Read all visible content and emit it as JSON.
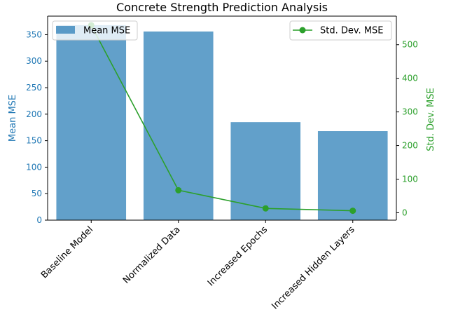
{
  "chart_data": {
    "type": "bar",
    "title": "Concrete Strength Prediction Analysis",
    "categories": [
      "Baseline Model",
      "Normalized Data",
      "Increased Epochs",
      "Increased Hidden Layers"
    ],
    "series": [
      {
        "name": "Mean MSE",
        "type": "bar",
        "axis": "left",
        "color": "#1f77b4",
        "values": [
          368,
          356,
          185,
          168
        ]
      },
      {
        "name": "Std. Dev. MSE",
        "type": "line",
        "axis": "right",
        "color": "#2ca02c",
        "values": [
          558,
          67,
          13,
          6
        ]
      }
    ],
    "ylabel_left": "Mean MSE",
    "ylabel_right": "Std. Dev. MSE",
    "ylim_left": [
      0,
      385
    ],
    "ylim_right": [
      -22,
      585
    ],
    "yticks_left": [
      0,
      50,
      100,
      150,
      200,
      250,
      300,
      350
    ],
    "yticks_right": [
      0,
      100,
      200,
      300,
      400,
      500
    ],
    "legend_left_position": "top-left",
    "legend_right_position": "top-right",
    "grid": false
  }
}
